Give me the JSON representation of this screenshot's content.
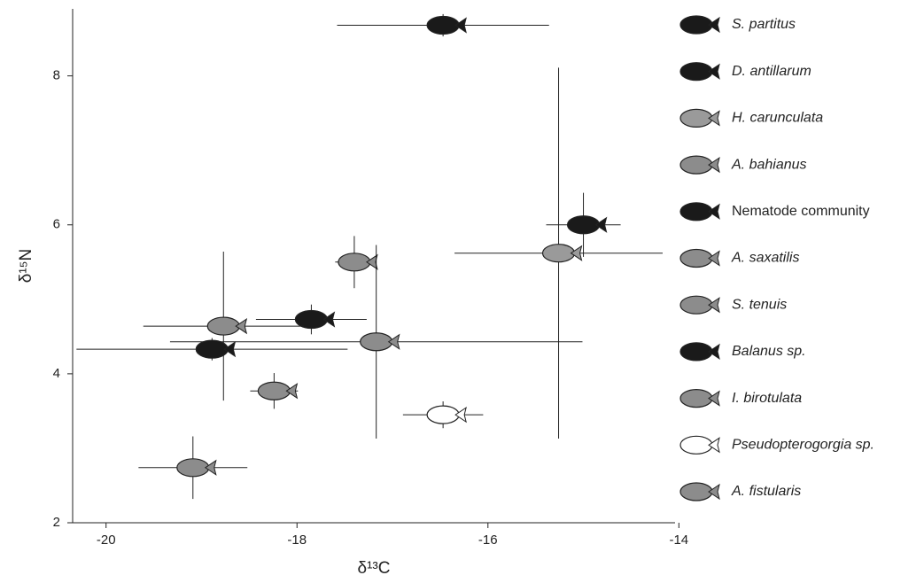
{
  "chart_data": {
    "type": "scatter",
    "xlabel": "δ¹³C",
    "ylabel": "δ¹⁵N",
    "xlim": [
      -20.35,
      -14.04
    ],
    "ylim": [
      2,
      8.9
    ],
    "xticks": [
      -20,
      -18,
      -16,
      -14
    ],
    "yticks": [
      2,
      4,
      6,
      8
    ],
    "series": [
      {
        "name": "S. partitus",
        "italic": true,
        "color": "#1a1a1a",
        "x": -16.47,
        "y": 8.68,
        "xerr": 1.11,
        "yerr": 0.15
      },
      {
        "name": "D. antillarum",
        "italic": true,
        "color": "#1a1a1a",
        "x": -15.0,
        "y": 6.0,
        "xerr": 0.39,
        "yerr": 0.43
      },
      {
        "name": "H. carunculata",
        "italic": true,
        "color": "#9a9a9a",
        "x": -15.26,
        "y": 5.62,
        "xerr": 1.09,
        "yerr": 2.49
      },
      {
        "name": "A. bahianus",
        "italic": true,
        "color": "#8c8c8c",
        "x": -17.4,
        "y": 5.5,
        "xerr": 0.2,
        "yerr": 0.35
      },
      {
        "name": "Nematode community",
        "italic": false,
        "color": "#1a1a1a",
        "x": -17.85,
        "y": 4.73,
        "xerr": 0.58,
        "yerr": 0.2
      },
      {
        "name": "A. saxatilis",
        "italic": true,
        "color": "#8c8c8c",
        "x": -18.77,
        "y": 4.64,
        "xerr": 0.84,
        "yerr": 1.0
      },
      {
        "name": "S. tenuis",
        "italic": true,
        "color": "#8c8c8c",
        "x": -17.17,
        "y": 4.43,
        "xerr": 2.16,
        "yerr": 1.3
      },
      {
        "name": "Balanus sp.",
        "italic": true,
        "color": "#1a1a1a",
        "x": -18.89,
        "y": 4.33,
        "xerr": 1.42,
        "yerr": 0.15
      },
      {
        "name": "I. birotulata",
        "italic": true,
        "color": "#8c8c8c",
        "x": -18.24,
        "y": 3.77,
        "xerr": 0.25,
        "yerr": 0.24
      },
      {
        "name": "Pseudopterogorgia sp.",
        "italic": true,
        "color": "#ffffff",
        "x": -16.47,
        "y": 3.45,
        "xerr": 0.42,
        "yerr": 0.18
      },
      {
        "name": "A. fistularis",
        "italic": true,
        "color": "#8c8c8c",
        "x": -19.09,
        "y": 2.74,
        "xerr": 0.57,
        "yerr": 0.42
      }
    ]
  }
}
